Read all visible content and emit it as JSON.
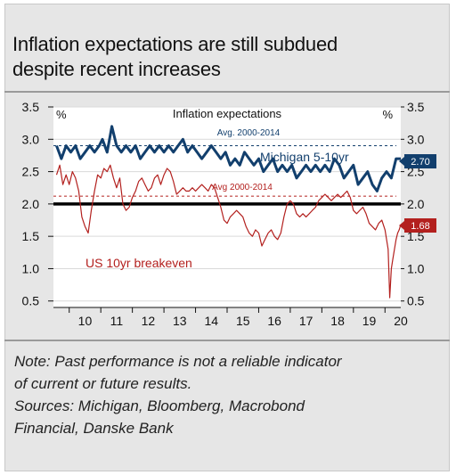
{
  "title": {
    "line1": "Inflation expectations  are still subdued",
    "line2": "despite recent increases"
  },
  "notes": {
    "line1": "Note: Past performance is not a reliable indicator",
    "line2": "of current or future results.",
    "line3": "Sources: Michigan, Bloomberg, Macrobond",
    "line4": "Financial, Danske Bank"
  },
  "colors": {
    "michigan": "#123f6d",
    "breakeven": "#b3201e",
    "zero_line": "#000000",
    "avg_michigan": "#123f6d",
    "avg_breakeven": "#b3201e"
  },
  "chart_data": {
    "type": "line",
    "title": "Inflation expectations",
    "left_unit": "%",
    "right_unit": "%",
    "ylim": [
      0.4,
      3.5
    ],
    "yticks_left": [
      "3.5",
      "3.0",
      "2.5",
      "2.0",
      "1.5",
      "1.0",
      "0.5"
    ],
    "yticks_right": [
      "3.5",
      "3.0",
      "2.5",
      "2.0",
      "1.5",
      "1.0",
      "0.5"
    ],
    "ytick_values": [
      3.5,
      3.0,
      2.5,
      2.0,
      1.5,
      1.0,
      0.5
    ],
    "xlim": [
      2009.5,
      2020.5
    ],
    "xticks": [
      "10",
      "11",
      "12",
      "13",
      "14",
      "15",
      "16",
      "17",
      "18",
      "19",
      "20"
    ],
    "reference_line": 2.0,
    "series": [
      {
        "name": "Michigan 5-10yr",
        "color": "#123f6d",
        "avg_label": "Avg. 2000-2014",
        "avg_value": 2.9,
        "end_label": "2.70",
        "x": [
          2009.6,
          2009.75,
          2009.9,
          2010.05,
          2010.2,
          2010.35,
          2010.5,
          2010.65,
          2010.8,
          2010.95,
          2011.05,
          2011.2,
          2011.35,
          2011.5,
          2011.65,
          2011.8,
          2011.95,
          2012.1,
          2012.25,
          2012.4,
          2012.55,
          2012.7,
          2012.85,
          2013.0,
          2013.15,
          2013.3,
          2013.45,
          2013.6,
          2013.75,
          2013.9,
          2014.05,
          2014.2,
          2014.35,
          2014.5,
          2014.65,
          2014.8,
          2014.95,
          2015.1,
          2015.25,
          2015.4,
          2015.55,
          2015.7,
          2015.85,
          2016.0,
          2016.15,
          2016.3,
          2016.45,
          2016.6,
          2016.75,
          2016.9,
          2017.05,
          2017.2,
          2017.35,
          2017.5,
          2017.65,
          2017.8,
          2017.95,
          2018.1,
          2018.25,
          2018.4,
          2018.55,
          2018.7,
          2018.85,
          2019.0,
          2019.15,
          2019.3,
          2019.45,
          2019.6,
          2019.75,
          2019.9,
          2020.05,
          2020.2,
          2020.35,
          2020.5
        ],
        "values": [
          2.9,
          2.7,
          2.9,
          2.8,
          2.9,
          2.7,
          2.8,
          2.9,
          2.8,
          2.9,
          3.0,
          2.8,
          3.2,
          2.9,
          2.8,
          2.9,
          2.8,
          2.9,
          2.7,
          2.8,
          2.9,
          2.8,
          2.9,
          2.8,
          2.9,
          2.8,
          2.9,
          3.0,
          2.8,
          2.9,
          2.8,
          2.7,
          2.8,
          2.9,
          2.8,
          2.7,
          2.8,
          2.6,
          2.7,
          2.6,
          2.8,
          2.7,
          2.6,
          2.7,
          2.5,
          2.6,
          2.7,
          2.5,
          2.6,
          2.5,
          2.6,
          2.4,
          2.5,
          2.6,
          2.5,
          2.6,
          2.5,
          2.6,
          2.5,
          2.7,
          2.6,
          2.4,
          2.5,
          2.6,
          2.3,
          2.4,
          2.5,
          2.3,
          2.2,
          2.4,
          2.5,
          2.4,
          2.7,
          2.7
        ]
      },
      {
        "name": "US 10yr breakeven",
        "color": "#b3201e",
        "avg_label": "Avg 2000-2014",
        "avg_value": 2.12,
        "end_label": "1.68",
        "x": [
          2009.6,
          2009.7,
          2009.8,
          2009.9,
          2010.0,
          2010.1,
          2010.2,
          2010.3,
          2010.4,
          2010.5,
          2010.6,
          2010.7,
          2010.8,
          2010.9,
          2011.0,
          2011.1,
          2011.2,
          2011.3,
          2011.4,
          2011.5,
          2011.6,
          2011.7,
          2011.8,
          2011.9,
          2012.0,
          2012.1,
          2012.2,
          2012.3,
          2012.4,
          2012.5,
          2012.6,
          2012.7,
          2012.8,
          2012.9,
          2013.0,
          2013.1,
          2013.2,
          2013.3,
          2013.4,
          2013.5,
          2013.6,
          2013.7,
          2013.8,
          2013.9,
          2014.0,
          2014.1,
          2014.2,
          2014.3,
          2014.4,
          2014.5,
          2014.6,
          2014.7,
          2014.8,
          2014.9,
          2015.0,
          2015.1,
          2015.2,
          2015.3,
          2015.4,
          2015.5,
          2015.6,
          2015.7,
          2015.8,
          2015.9,
          2016.0,
          2016.1,
          2016.2,
          2016.3,
          2016.4,
          2016.5,
          2016.6,
          2016.7,
          2016.8,
          2016.9,
          2017.0,
          2017.1,
          2017.2,
          2017.3,
          2017.4,
          2017.5,
          2017.6,
          2017.7,
          2017.8,
          2017.9,
          2018.0,
          2018.1,
          2018.2,
          2018.3,
          2018.4,
          2018.5,
          2018.6,
          2018.7,
          2018.8,
          2018.9,
          2019.0,
          2019.1,
          2019.2,
          2019.3,
          2019.4,
          2019.5,
          2019.6,
          2019.7,
          2019.8,
          2019.9,
          2020.0,
          2020.1,
          2020.15,
          2020.2,
          2020.25,
          2020.3,
          2020.35,
          2020.4,
          2020.45,
          2020.5
        ],
        "values": [
          2.45,
          2.6,
          2.3,
          2.45,
          2.3,
          2.5,
          2.4,
          2.2,
          1.8,
          1.65,
          1.55,
          1.9,
          2.2,
          2.45,
          2.4,
          2.55,
          2.5,
          2.6,
          2.4,
          2.25,
          2.4,
          2.0,
          1.9,
          1.95,
          2.1,
          2.2,
          2.35,
          2.4,
          2.3,
          2.2,
          2.25,
          2.4,
          2.45,
          2.3,
          2.45,
          2.55,
          2.5,
          2.35,
          2.15,
          2.2,
          2.25,
          2.2,
          2.2,
          2.25,
          2.2,
          2.25,
          2.3,
          2.25,
          2.2,
          2.3,
          2.25,
          2.1,
          1.95,
          1.75,
          1.7,
          1.8,
          1.85,
          1.9,
          1.85,
          1.8,
          1.65,
          1.55,
          1.5,
          1.6,
          1.55,
          1.35,
          1.45,
          1.55,
          1.6,
          1.5,
          1.45,
          1.55,
          1.8,
          2.0,
          2.05,
          2.0,
          1.85,
          1.8,
          1.85,
          1.8,
          1.85,
          1.9,
          1.95,
          2.05,
          2.1,
          2.15,
          2.1,
          2.05,
          2.1,
          2.15,
          2.1,
          2.15,
          2.2,
          2.1,
          1.9,
          1.85,
          1.9,
          1.95,
          1.85,
          1.7,
          1.65,
          1.6,
          1.7,
          1.75,
          1.6,
          1.3,
          0.55,
          1.0,
          1.15,
          1.3,
          1.45,
          1.55,
          1.6,
          1.68
        ]
      }
    ],
    "annotations": [
      "US 10yr breakeven",
      "Michigan 5-10yr"
    ]
  }
}
